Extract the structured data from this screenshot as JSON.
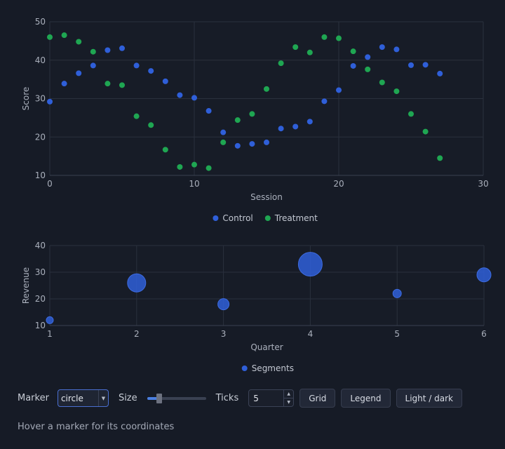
{
  "chart_data": [
    {
      "type": "scatter",
      "xlabel": "Session",
      "ylabel": "Score",
      "xlim": [
        0,
        30
      ],
      "ylim": [
        10,
        50
      ],
      "x_ticks": [
        0,
        10,
        20,
        30
      ],
      "y_ticks": [
        10,
        20,
        30,
        40,
        50
      ],
      "grid": true,
      "legend_position": "bottom-center",
      "series": [
        {
          "name": "Control",
          "color": "#2f5fd9",
          "x": [
            0,
            1,
            2,
            3,
            4,
            5,
            6,
            7,
            8,
            9,
            10,
            11,
            12,
            13,
            14,
            15,
            16,
            17,
            18,
            19,
            20,
            21,
            22,
            23,
            24,
            25,
            26,
            27
          ],
          "y": [
            29.2,
            33.9,
            36.6,
            38.6,
            42.6,
            43.1,
            38.6,
            37.2,
            34.5,
            30.9,
            30.2,
            26.8,
            21.2,
            17.7,
            18.2,
            18.6,
            22.2,
            22.7,
            24.0,
            29.3,
            32.2,
            38.5,
            40.8,
            43.4,
            42.8,
            38.7,
            38.8,
            36.5
          ]
        },
        {
          "name": "Treatment",
          "color": "#1fa652",
          "x": [
            0,
            1,
            2,
            3,
            4,
            5,
            6,
            7,
            8,
            9,
            10,
            11,
            12,
            13,
            14,
            15,
            16,
            17,
            18,
            19,
            20,
            21,
            22,
            23,
            24,
            25,
            26,
            27
          ],
          "y": [
            46.0,
            46.5,
            44.8,
            42.2,
            33.9,
            33.5,
            25.4,
            23.1,
            16.7,
            12.2,
            12.8,
            11.9,
            18.6,
            24.4,
            26.0,
            32.5,
            39.2,
            43.4,
            42.0,
            46.0,
            45.7,
            42.3,
            37.6,
            34.2,
            31.9,
            26.0,
            21.4,
            14.5
          ]
        }
      ]
    },
    {
      "type": "scatter",
      "xlabel": "Quarter",
      "ylabel": "Revenue",
      "xlim": [
        1,
        6
      ],
      "ylim": [
        10,
        40
      ],
      "x_ticks": [
        1,
        2,
        3,
        4,
        5,
        6
      ],
      "y_ticks": [
        10,
        20,
        30,
        40
      ],
      "grid": true,
      "legend_position": "bottom-center",
      "series": [
        {
          "name": "Segments",
          "color": "#2f5fd9",
          "x": [
            1,
            2,
            3,
            4,
            5,
            6
          ],
          "y": [
            12,
            26,
            18,
            33,
            22,
            29
          ],
          "size": [
            5,
            13,
            8,
            17,
            6,
            10
          ]
        }
      ]
    }
  ],
  "controls": {
    "marker_label": "Marker",
    "marker_value": "circle",
    "size_label": "Size",
    "size_level": 0.2,
    "ticks_label": "Ticks",
    "ticks_value": "5",
    "grid_button": "Grid",
    "legend_button": "Legend",
    "theme_button": "Light / dark"
  },
  "status_text": "Hover a marker for its coordinates"
}
